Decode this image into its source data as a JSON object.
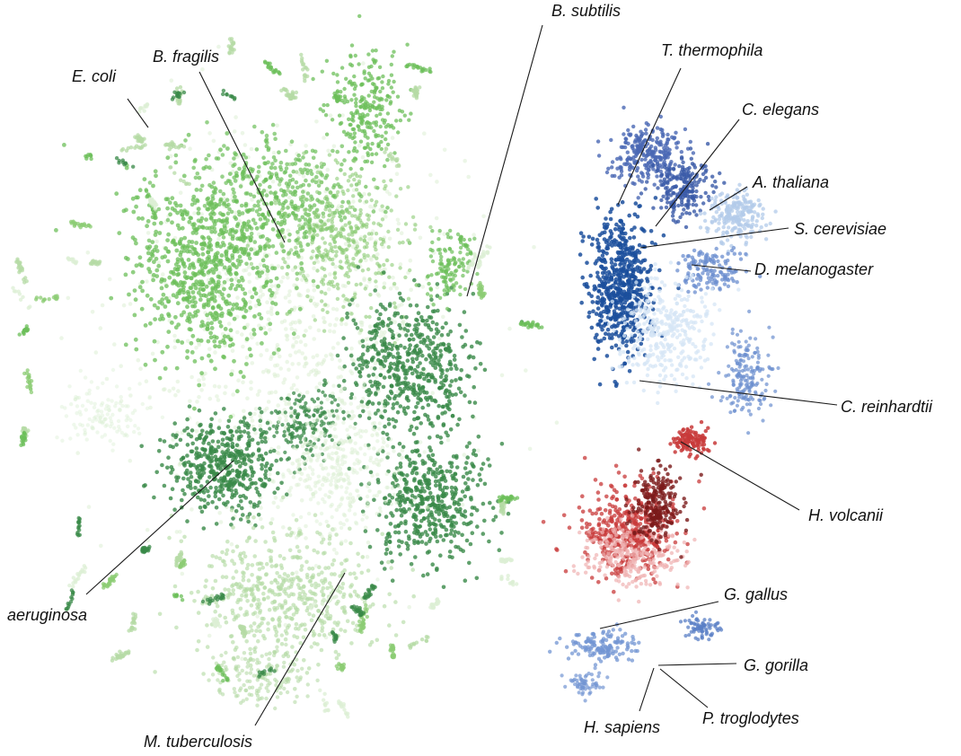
{
  "chart_data": {
    "type": "scatter",
    "title": "",
    "xlabel": "",
    "ylabel": "",
    "grid": false,
    "legend": "none",
    "axes_visible": false,
    "series": [
      {
        "name": "B. fragilis",
        "group": "bacteria",
        "color": "#6cbf5a"
      },
      {
        "name": "B. subtilis",
        "group": "bacteria",
        "color": "#8ccc74"
      },
      {
        "name": "E. coli",
        "group": "bacteria",
        "color": "#dcefd4"
      },
      {
        "name": "aeruginosa",
        "group": "bacteria",
        "color": "#3a8a48"
      },
      {
        "name": "M. tuberculosis",
        "group": "bacteria",
        "color": "#b6dba6"
      },
      {
        "name": "T. thermophila",
        "group": "eukaryota",
        "color": "#4a68b4"
      },
      {
        "name": "C. elegans",
        "group": "eukaryota",
        "color": "#3a5aa8"
      },
      {
        "name": "A. thaliana",
        "group": "eukaryota",
        "color": "#b3cbea"
      },
      {
        "name": "S. cerevisiae",
        "group": "eukaryota",
        "color": "#1b4f9c"
      },
      {
        "name": "D. melanogaster",
        "group": "eukaryota",
        "color": "#6b8ecf"
      },
      {
        "name": "C. reinhardtii",
        "group": "eukaryota",
        "color": "#d6e5f6"
      },
      {
        "name": "H. volcanii",
        "group": "archaea",
        "color": "#c83a3a"
      },
      {
        "name": "G. gallus",
        "group": "vertebrates",
        "color": "#7396d3"
      },
      {
        "name": "G. gorilla",
        "group": "vertebrates",
        "color": "#5a7fc6"
      },
      {
        "name": "H. sapiens",
        "group": "vertebrates",
        "color": "#5a7fc6"
      },
      {
        "name": "P. troglodytes",
        "group": "vertebrates",
        "color": "#5a7fc6"
      }
    ]
  },
  "labels": {
    "b_subtilis": "B. subtilis",
    "b_fragilis": "B. fragilis",
    "e_coli": "E. coli",
    "t_thermophila": "T. thermophila",
    "c_elegans": "C. elegans",
    "a_thaliana": "A. thaliana",
    "s_cerevisiae": "S. cerevisiae",
    "d_melanogaster": "D. melanogaster",
    "c_reinhardtii": "C. reinhardtii",
    "h_volcanii": "H. volcanii",
    "g_gallus": "G. gallus",
    "g_gorilla": "G. gorilla",
    "h_sapiens": "H. sapiens",
    "p_troglodytes": "P. troglodytes",
    "aeruginosa": "aeruginosa",
    "m_tuberculosis": "M. tuberculosis"
  }
}
